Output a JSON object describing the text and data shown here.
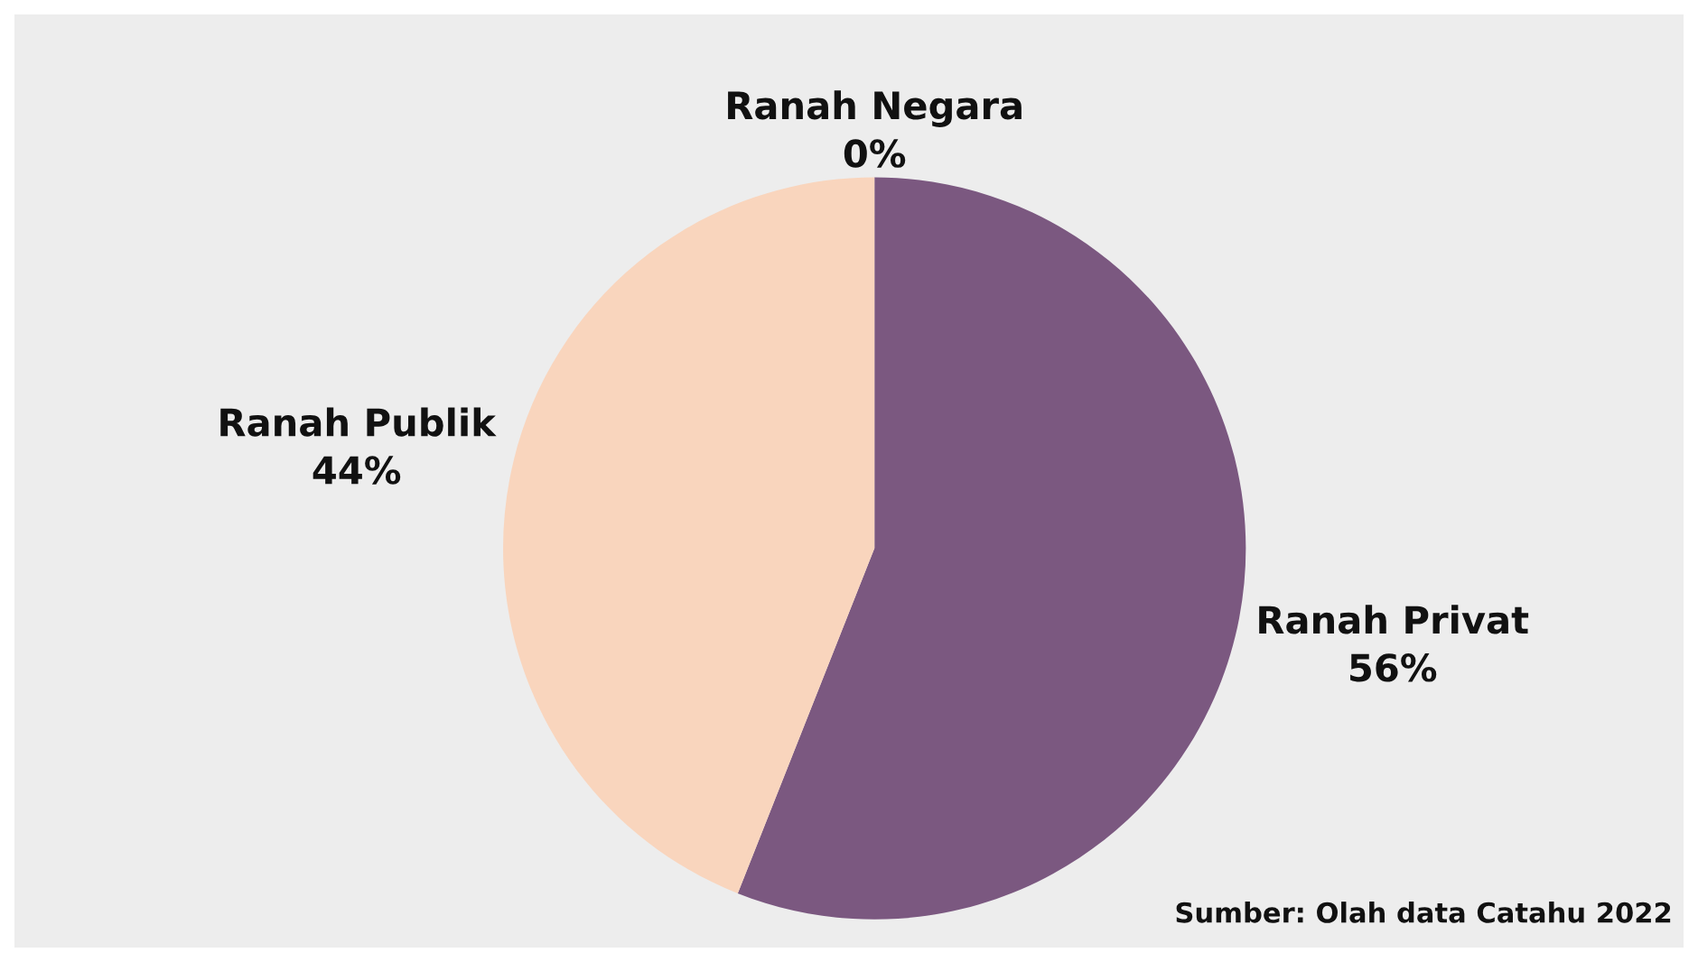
{
  "chart_data": {
    "type": "pie",
    "categories": [
      "Ranah Privat",
      "Ranah Publik",
      "Ranah Negara"
    ],
    "values": [
      56,
      44,
      0
    ],
    "colors": [
      "#7b5880",
      "#f9d5bd",
      null
    ],
    "value_labels": [
      "56%",
      "44%",
      "0%"
    ],
    "annotations": [
      "Sumber: Olah data Catahu 2022"
    ]
  }
}
